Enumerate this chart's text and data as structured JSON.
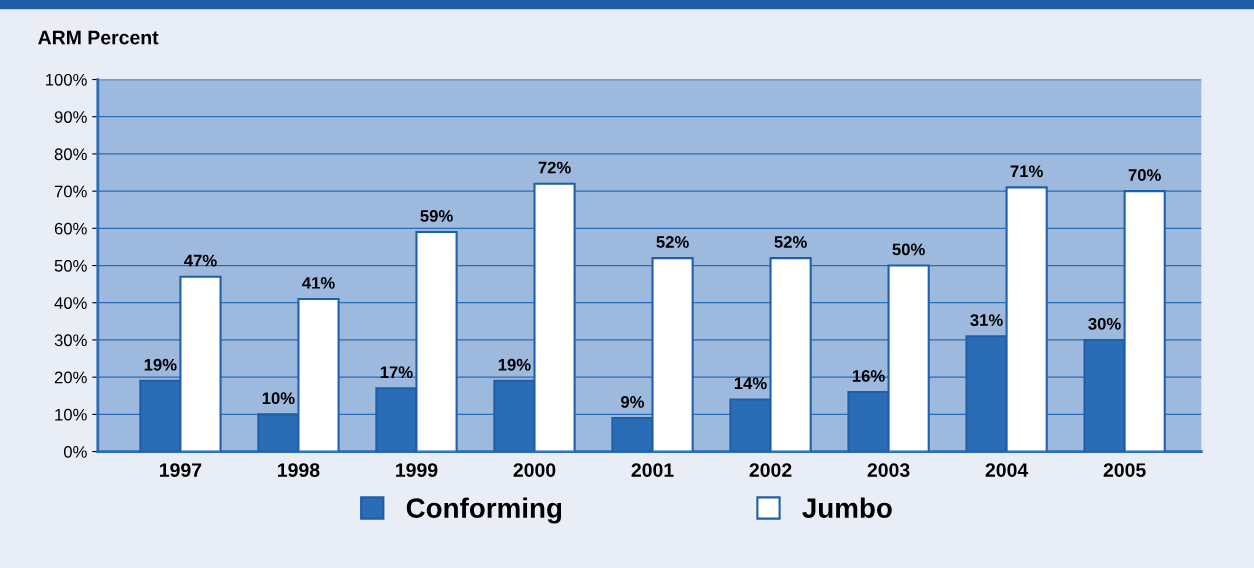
{
  "chart_data": {
    "type": "bar",
    "ylabel": "ARM Percent",
    "categories": [
      "1997",
      "1998",
      "1999",
      "2000",
      "2001",
      "2002",
      "2003",
      "2004",
      "2005"
    ],
    "series": [
      {
        "name": "Conforming",
        "color": "#2a6cb6",
        "values": [
          19,
          10,
          17,
          19,
          9,
          14,
          16,
          31,
          30
        ],
        "value_labels": [
          "19%",
          "10%",
          "17%",
          "19%",
          "9%",
          "14%",
          "16%",
          "31%",
          "30%"
        ]
      },
      {
        "name": "Jumbo",
        "color": "#ffffff",
        "values": [
          47,
          41,
          59,
          72,
          52,
          52,
          50,
          71,
          70
        ],
        "value_labels": [
          "47%",
          "41%",
          "59%",
          "72%",
          "52%",
          "52%",
          "50%",
          "71%",
          "70%"
        ]
      }
    ],
    "ylim": [
      0,
      100
    ],
    "yticks": [
      {
        "value": 0,
        "label": "0%"
      },
      {
        "value": 10,
        "label": "10%"
      },
      {
        "value": 20,
        "label": "20%"
      },
      {
        "value": 30,
        "label": "30%"
      },
      {
        "value": 40,
        "label": "40%"
      },
      {
        "value": 50,
        "label": "50%"
      },
      {
        "value": 60,
        "label": "60%"
      },
      {
        "value": 70,
        "label": "70%"
      },
      {
        "value": 80,
        "label": "80%"
      },
      {
        "value": 90,
        "label": "90%"
      },
      {
        "value": 100,
        "label": "100%"
      }
    ],
    "grid": "y",
    "legend": "bottom"
  }
}
